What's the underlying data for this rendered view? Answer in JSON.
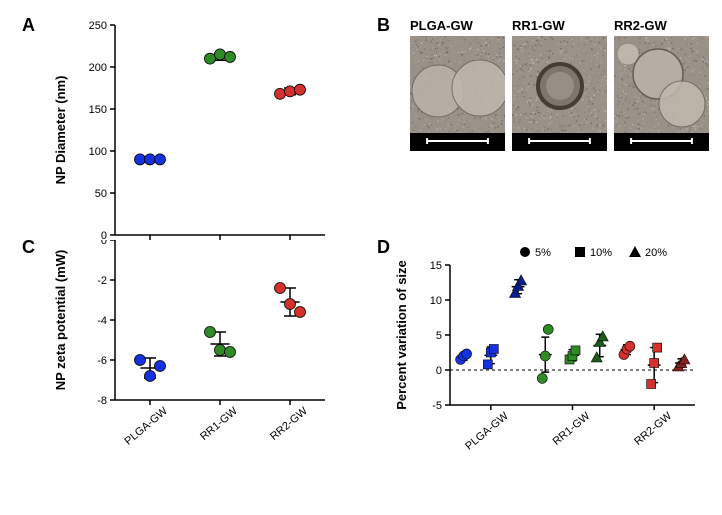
{
  "labels": {
    "panelA": "A",
    "panelB": "B",
    "panelC": "C",
    "panelD": "D"
  },
  "colors": {
    "plga": "#1432e1",
    "rr1": "#2e8b26",
    "rr2": "#d4312d",
    "darkblue": "#0a1f8f",
    "darkgreen": "#1a5c18",
    "darkred": "#8b1f1c",
    "axis": "#000000",
    "grid": "#e0e0e0",
    "bg": "#ffffff",
    "errorbar": "#000000"
  },
  "panelA": {
    "ylabel": "NP Diameter (nm)",
    "ylim": [
      0,
      250
    ],
    "yticks": [
      0,
      50,
      100,
      150,
      200,
      250
    ],
    "categories": [
      "PLGA-GW",
      "RR1-GW",
      "RR2-GW"
    ],
    "data": {
      "PLGA-GW": {
        "points": [
          90,
          90,
          90
        ],
        "color": "#1432e1",
        "mean": 90,
        "err": 3
      },
      "RR1-GW": {
        "points": [
          210,
          215,
          212
        ],
        "color": "#2e8b26",
        "mean": 212,
        "err": 4
      },
      "RR2-GW": {
        "points": [
          168,
          171,
          173
        ],
        "color": "#d4312d",
        "mean": 171,
        "err": 4
      }
    }
  },
  "panelB": {
    "images": [
      {
        "label": "PLGA-GW"
      },
      {
        "label": "RR1-GW"
      },
      {
        "label": "RR2-GW"
      }
    ]
  },
  "panelC": {
    "ylabel": "NP zeta potential (mW)",
    "ylim": [
      -8,
      0
    ],
    "yticks": [
      -8,
      -6,
      -4,
      -2,
      0
    ],
    "categories": [
      "PLGA-GW",
      "RR1-GW",
      "RR2-GW"
    ],
    "data": {
      "PLGA-GW": {
        "points": [
          -6.0,
          -6.8,
          -6.3
        ],
        "color": "#1432e1",
        "mean": -6.4,
        "err": 0.5
      },
      "RR1-GW": {
        "points": [
          -4.6,
          -5.5,
          -5.6
        ],
        "color": "#2e8b26",
        "mean": -5.2,
        "err": 0.6
      },
      "RR2-GW": {
        "points": [
          -2.4,
          -3.2,
          -3.6
        ],
        "color": "#d4312d",
        "mean": -3.1,
        "err": 0.7
      }
    }
  },
  "panelD": {
    "ylabel": "Percent variation of size",
    "ylim": [
      -5,
      15
    ],
    "yticks": [
      -5,
      0,
      5,
      10,
      15
    ],
    "categories": [
      "PLGA-GW",
      "RR1-GW",
      "RR2-GW"
    ],
    "legend": [
      {
        "marker": "circle",
        "label": "5%"
      },
      {
        "marker": "square",
        "label": "10%"
      },
      {
        "marker": "triangle",
        "label": "20%"
      }
    ],
    "groups": {
      "PLGA-GW": {
        "5%": {
          "points": [
            1.5,
            2.0,
            2.3
          ],
          "color": "#1432e1",
          "mean": 1.9,
          "err": 0.5
        },
        "10%": {
          "points": [
            0.8,
            2.5,
            3.0
          ],
          "color": "#1432e1",
          "mean": 2.1,
          "err": 1.2
        },
        "20%": {
          "points": [
            11.0,
            12.0,
            12.8
          ],
          "color": "#0a1f8f",
          "mean": 11.9,
          "err": 1.0
        }
      },
      "RR1-GW": {
        "5%": {
          "points": [
            -1.2,
            2.0,
            5.8
          ],
          "color": "#2e8b26",
          "mean": 2.2,
          "err": 2.5
        },
        "10%": {
          "points": [
            1.5,
            2.0,
            2.8
          ],
          "color": "#2e8b26",
          "mean": 2.1,
          "err": 0.8
        },
        "20%": {
          "points": [
            1.8,
            4.0,
            4.8
          ],
          "color": "#1a5c18",
          "mean": 3.5,
          "err": 1.6
        }
      },
      "RR2-GW": {
        "5%": {
          "points": [
            2.2,
            3.0,
            3.4
          ],
          "color": "#d4312d",
          "mean": 2.9,
          "err": 0.7
        },
        "10%": {
          "points": [
            -2.0,
            1.0,
            3.2
          ],
          "color": "#d4312d",
          "mean": 0.7,
          "err": 2.5
        },
        "20%": {
          "points": [
            0.5,
            1.0,
            1.5
          ],
          "color": "#8b1f1c",
          "mean": 1.0,
          "err": 0.6
        }
      }
    }
  }
}
